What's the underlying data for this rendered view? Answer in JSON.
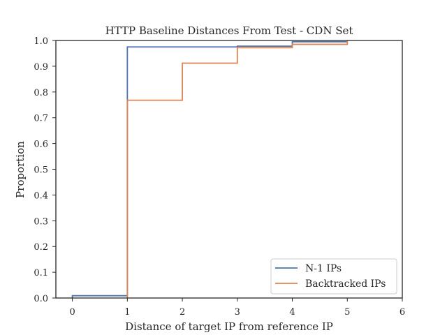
{
  "chart_data": {
    "type": "line",
    "step": true,
    "title": "HTTP Baseline Distances From Test - CDN Set",
    "xlabel": "Distance of target IP from reference IP",
    "ylabel": "Proportion",
    "xlim": [
      -0.3,
      6
    ],
    "ylim": [
      0,
      1
    ],
    "xticks": [
      0,
      1,
      2,
      3,
      4,
      5,
      6
    ],
    "yticks": [
      0.0,
      0.1,
      0.2,
      0.3,
      0.4,
      0.5,
      0.6,
      0.7,
      0.8,
      0.9,
      1.0
    ],
    "ytick_labels": [
      "0.0",
      "0.1",
      "0.2",
      "0.3",
      "0.4",
      "0.5",
      "0.6",
      "0.7",
      "0.8",
      "0.9",
      "1.0"
    ],
    "grid": false,
    "legend_position": "bottom-right",
    "series": [
      {
        "name": "N-1 IPs",
        "color": "#4c72b0",
        "points": [
          [
            0,
            0.0
          ],
          [
            0,
            0.009
          ],
          [
            1,
            0.009
          ],
          [
            1,
            0.975
          ],
          [
            3,
            0.975
          ],
          [
            3,
            0.978
          ],
          [
            4,
            0.978
          ],
          [
            4,
            0.995
          ],
          [
            5,
            0.995
          ],
          [
            5,
            1.0
          ]
        ]
      },
      {
        "name": "Backtracked IPs",
        "color": "#dd8452",
        "points": [
          [
            1,
            0.0
          ],
          [
            1,
            0.768
          ],
          [
            2,
            0.768
          ],
          [
            2,
            0.912
          ],
          [
            3,
            0.912
          ],
          [
            3,
            0.972
          ],
          [
            4,
            0.972
          ],
          [
            4,
            0.985
          ],
          [
            5,
            0.985
          ],
          [
            5,
            1.0
          ]
        ]
      }
    ]
  }
}
